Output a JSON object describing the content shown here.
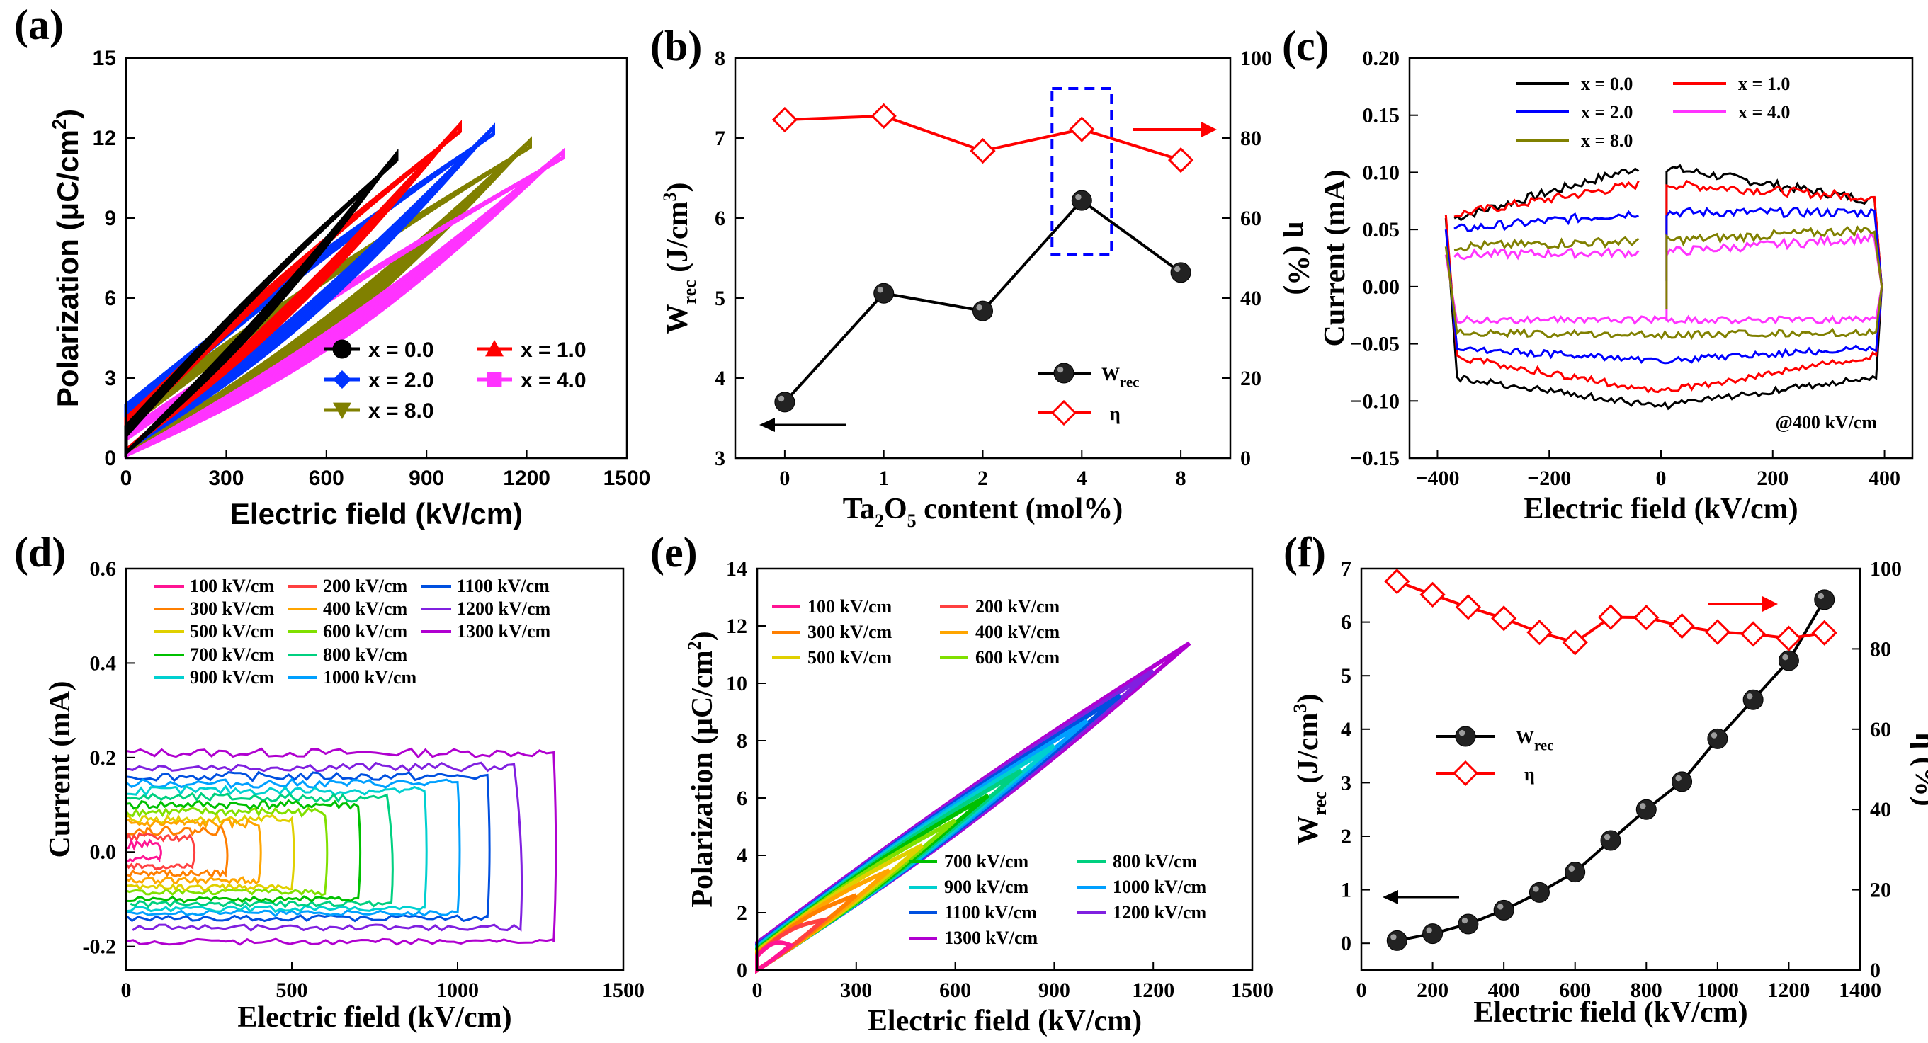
{
  "panels": [
    {
      "id": "a",
      "letter": "(a)",
      "chart_data": {
        "type": "line",
        "title": "",
        "xlabel": "Electric field (kV/cm)",
        "ylabel_parts": [
          "Polarization (",
          "μ",
          "C/cm",
          "2",
          ")"
        ],
        "xlim": [
          0,
          1500
        ],
        "ylim": [
          0,
          15
        ],
        "xticks": [
          0,
          300,
          600,
          900,
          1200,
          1500
        ],
        "yticks": [
          0,
          3,
          6,
          9,
          12,
          15
        ],
        "series": [
          {
            "name": "x = 0.0",
            "color": "#000000",
            "marker": "circle",
            "emax": 810,
            "pmax": 11.4,
            "pr": 1.2,
            "pbottom": 0.2,
            "spread": 0.8
          },
          {
            "name": "x = 1.0",
            "color": "#ff0000",
            "marker": "triangle",
            "emax": 1000,
            "pmax": 12.5,
            "pr": 1.5,
            "pbottom": 0.3,
            "spread": 1.0
          },
          {
            "name": "x = 2.0",
            "color": "#0033ff",
            "marker": "diamond",
            "emax": 1100,
            "pmax": 12.4,
            "pr": 2.0,
            "pbottom": 0.3,
            "spread": 1.2
          },
          {
            "name": "x = 4.0",
            "color": "#ff33ff",
            "marker": "square",
            "emax": 1310,
            "pmax": 11.5,
            "pr": 1.0,
            "pbottom": 0.1,
            "spread": 1.4
          },
          {
            "name": "x = 8.0",
            "color": "#808000",
            "marker": "triangle-down",
            "emax": 1210,
            "pmax": 11.9,
            "pr": 1.6,
            "pbottom": 0.2,
            "spread": 1.6
          }
        ]
      }
    },
    {
      "id": "b",
      "letter": "(b)",
      "chart_data": {
        "type": "line",
        "title": "",
        "xlabel_parts": [
          "Ta",
          "2",
          "O",
          "5",
          " content (mol%)"
        ],
        "ylabel_parts": [
          "W",
          "rec",
          " (J/cm",
          "3",
          ")"
        ],
        "y2label": "η (%)",
        "categories": [
          "0",
          "1",
          "2",
          "4",
          "8"
        ],
        "ylim": [
          3,
          8
        ],
        "y2lim": [
          0,
          100
        ],
        "yticks": [
          3,
          4,
          5,
          6,
          7,
          8
        ],
        "y2ticks": [
          0,
          20,
          40,
          60,
          80,
          100
        ],
        "series": [
          {
            "name": "W_rec",
            "label_main": "W",
            "label_sub": "rec",
            "axis": "left",
            "color": "#000000",
            "marker": "sphere",
            "values": [
              3.7,
              5.06,
              4.84,
              6.22,
              5.32
            ]
          },
          {
            "name": "η",
            "label_main": "η",
            "axis": "right",
            "color": "#ff0000",
            "marker": "open-diamond",
            "values": [
              84.6,
              85.5,
              76.8,
              82.2,
              74.5
            ]
          }
        ]
      }
    },
    {
      "id": "c",
      "letter": "(c)",
      "chart_data": {
        "type": "line",
        "title": "",
        "xlabel": "Electric field (kV/cm)",
        "ylabel": "Current (mA)",
        "xlim": [
          -450,
          450
        ],
        "ylim": [
          -0.15,
          0.2
        ],
        "xticks": [
          -400,
          -200,
          0,
          200,
          400
        ],
        "xtick_labels": [
          "−400",
          "−200",
          "0",
          "200",
          "400"
        ],
        "yticks": [
          -0.15,
          -0.1,
          -0.05,
          0.0,
          0.05,
          0.1,
          0.15,
          0.2
        ],
        "ytick_labels": [
          "−0.15",
          "−0.10",
          "−0.05",
          "0.00",
          "0.05",
          "0.10",
          "0.15",
          "0.20"
        ],
        "annotation": "@400 kV/cm",
        "series": [
          {
            "name": "x = 0.0",
            "color": "#000000",
            "i_edge": 0.06,
            "i_center": 0.105,
            "i_neg_edge": -0.078,
            "i_neg_center": -0.105
          },
          {
            "name": "x = 1.0",
            "color": "#ff0000",
            "i_edge": 0.063,
            "i_center": 0.09,
            "i_neg_edge": -0.06,
            "i_neg_center": -0.092
          },
          {
            "name": "x = 2.0",
            "color": "#0000ff",
            "i_edge": 0.05,
            "i_center": 0.065,
            "i_neg_edge": -0.053,
            "i_neg_center": -0.065
          },
          {
            "name": "x = 4.0",
            "color": "#ff33ff",
            "i_edge": 0.028,
            "i_center": 0.03,
            "i_neg_edge": -0.029,
            "i_neg_center": -0.029
          },
          {
            "name": "x = 8.0",
            "color": "#808000",
            "i_edge": 0.035,
            "i_center": 0.04,
            "i_neg_edge": -0.04,
            "i_neg_center": -0.042
          }
        ]
      }
    },
    {
      "id": "d",
      "letter": "(d)",
      "chart_data": {
        "type": "line",
        "title": "",
        "xlabel": "Electric field (kV/cm)",
        "ylabel": "Current (mA)",
        "xlim": [
          0,
          1500
        ],
        "ylim": [
          -0.25,
          0.6
        ],
        "xticks": [
          0,
          500,
          1000,
          1500
        ],
        "yticks": [
          -0.2,
          0.0,
          0.2,
          0.4,
          0.6
        ],
        "ytick_labels": [
          "-0.2",
          "0.0",
          "0.2",
          "0.4",
          "0.6"
        ],
        "series": [
          {
            "name": "100 kV/cm",
            "color": "#ff1493",
            "emax": 100,
            "ipos": 0.015,
            "ineg": -0.015
          },
          {
            "name": "200 kV/cm",
            "color": "#ff4040",
            "emax": 200,
            "ipos": 0.03,
            "ineg": -0.03
          },
          {
            "name": "300 kV/cm",
            "color": "#ff7f00",
            "emax": 300,
            "ipos": 0.045,
            "ineg": -0.045
          },
          {
            "name": "400 kV/cm",
            "color": "#ffa500",
            "emax": 400,
            "ipos": 0.06,
            "ineg": -0.06
          },
          {
            "name": "500 kV/cm",
            "color": "#e0d000",
            "emax": 500,
            "ipos": 0.07,
            "ineg": -0.075
          },
          {
            "name": "600 kV/cm",
            "color": "#80e000",
            "emax": 600,
            "ipos": 0.085,
            "ineg": -0.085
          },
          {
            "name": "700 kV/cm",
            "color": "#00c000",
            "emax": 700,
            "ipos": 0.1,
            "ineg": -0.1
          },
          {
            "name": "800 kV/cm",
            "color": "#00d080",
            "emax": 800,
            "ipos": 0.115,
            "ineg": -0.11
          },
          {
            "name": "900 kV/cm",
            "color": "#00d0d0",
            "emax": 900,
            "ipos": 0.13,
            "ineg": -0.12
          },
          {
            "name": "1000 kV/cm",
            "color": "#00a0ff",
            "emax": 1000,
            "ipos": 0.145,
            "ineg": -0.13
          },
          {
            "name": "1100 kV/cm",
            "color": "#0050e0",
            "emax": 1090,
            "ipos": 0.16,
            "ineg": -0.14
          },
          {
            "name": "1200 kV/cm",
            "color": "#8020e0",
            "emax": 1190,
            "ipos": 0.18,
            "ineg": -0.16
          },
          {
            "name": "1300 kV/cm",
            "color": "#b000d0",
            "emax": 1290,
            "ipos": 0.21,
            "ineg": -0.19
          }
        ]
      }
    },
    {
      "id": "e",
      "letter": "(e)",
      "chart_data": {
        "type": "line",
        "title": "",
        "xlabel": "Electric field (kV/cm)",
        "ylabel_parts": [
          "Polarization (",
          "μ",
          "C/cm",
          "2",
          ")"
        ],
        "xlim": [
          0,
          1500
        ],
        "ylim": [
          0,
          14
        ],
        "xticks": [
          0,
          300,
          600,
          900,
          1200,
          1500
        ],
        "yticks": [
          0,
          2,
          4,
          6,
          8,
          10,
          12,
          14
        ],
        "series": [
          {
            "name": "100 kV/cm",
            "color": "#ff1493",
            "emax": 100
          },
          {
            "name": "200 kV/cm",
            "color": "#ff4040",
            "emax": 200
          },
          {
            "name": "300 kV/cm",
            "color": "#ff7f00",
            "emax": 300
          },
          {
            "name": "400 kV/cm",
            "color": "#ffa500",
            "emax": 400
          },
          {
            "name": "500 kV/cm",
            "color": "#e0d000",
            "emax": 500
          },
          {
            "name": "600 kV/cm",
            "color": "#80e000",
            "emax": 600
          },
          {
            "name": "700 kV/cm",
            "color": "#00c000",
            "emax": 700
          },
          {
            "name": "800 kV/cm",
            "color": "#00d080",
            "emax": 800
          },
          {
            "name": "900 kV/cm",
            "color": "#00d0d0",
            "emax": 900
          },
          {
            "name": "1000 kV/cm",
            "color": "#00a0ff",
            "emax": 1000
          },
          {
            "name": "1100 kV/cm",
            "color": "#0050e0",
            "emax": 1100
          },
          {
            "name": "1200 kV/cm",
            "color": "#8020e0",
            "emax": 1200
          },
          {
            "name": "1300 kV/cm",
            "color": "#b000d0",
            "emax": 1310
          }
        ],
        "pmax_at_1310": 11.4
      }
    },
    {
      "id": "f",
      "letter": "(f)",
      "chart_data": {
        "type": "line",
        "title": "",
        "xlabel": "Electric field (kV/cm)",
        "ylabel_parts": [
          "W",
          "rec",
          " (J/cm",
          "3",
          ")"
        ],
        "y2label": "η (%)",
        "xlim": [
          0,
          1400
        ],
        "ylim": [
          -0.5,
          7
        ],
        "y2lim": [
          0,
          100
        ],
        "xticks": [
          0,
          200,
          400,
          600,
          800,
          1000,
          1200,
          1400
        ],
        "yticks": [
          0,
          1,
          2,
          3,
          4,
          5,
          6,
          7
        ],
        "y2ticks": [
          0,
          20,
          40,
          60,
          80,
          100
        ],
        "x": [
          100,
          200,
          300,
          400,
          500,
          600,
          700,
          800,
          900,
          1000,
          1100,
          1200,
          1300
        ],
        "series": [
          {
            "name": "W_rec",
            "label_main": "W",
            "label_sub": "rec",
            "axis": "left",
            "color": "#000000",
            "marker": "sphere",
            "values": [
              0.05,
              0.18,
              0.36,
              0.62,
              0.95,
              1.33,
              1.92,
              2.5,
              3.02,
              3.82,
              4.55,
              5.28,
              6.42
            ]
          },
          {
            "name": "η",
            "label_main": "η",
            "axis": "right",
            "color": "#ff0000",
            "marker": "open-diamond",
            "values": [
              96.8,
              93.5,
              90.4,
              87.6,
              84.1,
              81.6,
              87.9,
              87.8,
              85.7,
              84.2,
              83.7,
              82.6,
              84.0
            ]
          }
        ]
      }
    }
  ]
}
